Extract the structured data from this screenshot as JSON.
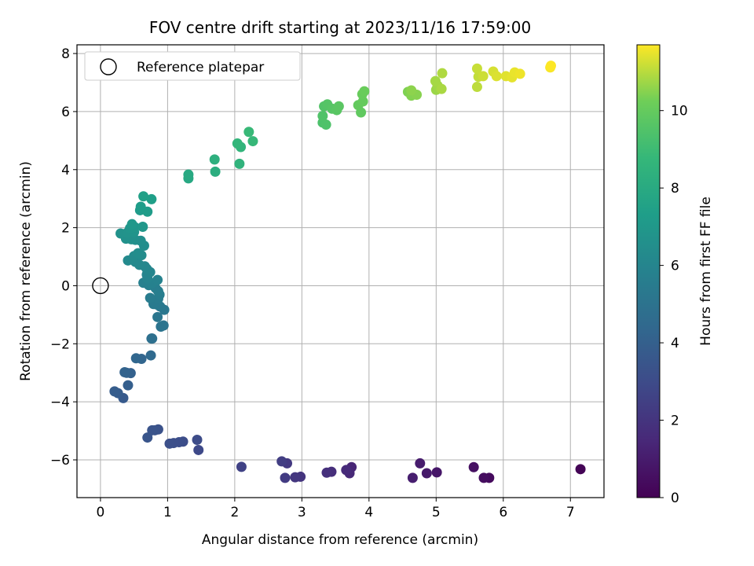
{
  "chart_data": {
    "type": "scatter",
    "title": "FOV centre drift starting at 2023/11/16 17:59:00",
    "xlabel": "Angular distance from reference (arcmin)",
    "ylabel": "Rotation from reference (arcmin)",
    "xlim": [
      -0.35,
      7.5
    ],
    "ylim": [
      -7.3,
      8.3
    ],
    "xticks": [
      0,
      1,
      2,
      3,
      4,
      5,
      6,
      7
    ],
    "yticks": [
      -6,
      -4,
      -2,
      0,
      2,
      4,
      6,
      8
    ],
    "grid": true,
    "legend": {
      "placement": "top-left",
      "entries": [
        "Reference platepar"
      ]
    },
    "reference_point": {
      "x": 0,
      "y": 0
    },
    "colorbar": {
      "label": "Hours from first FF file",
      "colormap": "viridis",
      "range": [
        0,
        11.7
      ],
      "ticks": [
        0,
        2,
        4,
        6,
        8,
        10
      ]
    },
    "series": [
      {
        "points": [
          [
            7.15,
            -6.32,
            0.1
          ],
          [
            5.79,
            -6.62,
            0.35
          ],
          [
            5.71,
            -6.62,
            0.45
          ],
          [
            5.56,
            -6.25,
            0.55
          ],
          [
            5.01,
            -6.43,
            0.8
          ],
          [
            4.86,
            -6.46,
            0.9
          ],
          [
            4.76,
            -6.12,
            1.0
          ],
          [
            4.65,
            -6.62,
            1.1
          ],
          [
            3.74,
            -6.25,
            1.4
          ],
          [
            3.71,
            -6.46,
            1.5
          ],
          [
            3.66,
            -6.35,
            1.6
          ],
          [
            3.44,
            -6.41,
            1.7
          ],
          [
            3.37,
            -6.44,
            1.8
          ],
          [
            2.98,
            -6.58,
            2.0
          ],
          [
            2.9,
            -6.6,
            2.1
          ],
          [
            2.78,
            -6.12,
            2.2
          ],
          [
            2.75,
            -6.62,
            2.3
          ],
          [
            2.7,
            -6.05,
            2.4
          ],
          [
            2.1,
            -6.24,
            2.6
          ],
          [
            1.46,
            -5.66,
            2.9
          ],
          [
            1.44,
            -5.31,
            3.0
          ],
          [
            1.23,
            -5.37,
            3.05
          ],
          [
            1.17,
            -5.39,
            3.1
          ],
          [
            1.09,
            -5.42,
            3.15
          ],
          [
            1.03,
            -5.44,
            3.2
          ],
          [
            0.86,
            -4.95,
            3.3
          ],
          [
            0.81,
            -4.98,
            3.35
          ],
          [
            0.77,
            -4.98,
            3.4
          ],
          [
            0.7,
            -5.23,
            3.45
          ],
          [
            0.34,
            -3.87,
            3.7
          ],
          [
            0.26,
            -3.7,
            3.8
          ],
          [
            0.21,
            -3.64,
            3.85
          ],
          [
            0.41,
            -3.43,
            3.95
          ],
          [
            0.45,
            -3.01,
            4.05
          ],
          [
            0.39,
            -3.0,
            4.1
          ],
          [
            0.36,
            -2.98,
            4.15
          ],
          [
            0.61,
            -2.52,
            4.3
          ],
          [
            0.53,
            -2.5,
            4.35
          ],
          [
            0.75,
            -2.4,
            4.5
          ],
          [
            0.76,
            -1.82,
            4.8
          ],
          [
            0.77,
            -1.82,
            4.85
          ],
          [
            0.9,
            -1.41,
            5.0
          ],
          [
            0.94,
            -1.37,
            5.05
          ],
          [
            0.85,
            -1.08,
            5.15
          ],
          [
            0.95,
            -0.83,
            5.25
          ],
          [
            0.89,
            -0.72,
            5.3
          ],
          [
            0.84,
            -0.65,
            5.35
          ],
          [
            0.79,
            -0.63,
            5.4
          ],
          [
            0.86,
            -0.45,
            5.45
          ],
          [
            0.74,
            -0.42,
            5.5
          ],
          [
            0.88,
            -0.31,
            5.55
          ],
          [
            0.86,
            -0.19,
            5.6
          ],
          [
            0.82,
            -0.08,
            5.65
          ],
          [
            0.72,
            0.02,
            5.7
          ],
          [
            0.64,
            0.1,
            5.75
          ],
          [
            0.76,
            0.08,
            5.8
          ],
          [
            0.85,
            0.2,
            5.85
          ],
          [
            0.7,
            0.25,
            5.9
          ],
          [
            0.69,
            0.38,
            5.95
          ],
          [
            0.74,
            0.47,
            6.0
          ],
          [
            0.69,
            0.58,
            6.05
          ],
          [
            0.66,
            0.67,
            6.1
          ],
          [
            0.58,
            0.72,
            6.15
          ],
          [
            0.52,
            0.82,
            6.2
          ],
          [
            0.41,
            0.87,
            6.25
          ],
          [
            0.5,
            1.02,
            6.3
          ],
          [
            0.61,
            1.05,
            6.35
          ],
          [
            0.56,
            1.12,
            6.4
          ],
          [
            0.65,
            1.38,
            6.45
          ],
          [
            0.6,
            1.55,
            6.5
          ],
          [
            0.52,
            1.58,
            6.55
          ],
          [
            0.46,
            1.6,
            6.6
          ],
          [
            0.38,
            1.62,
            6.65
          ],
          [
            0.3,
            1.8,
            6.7
          ],
          [
            0.4,
            1.83,
            6.75
          ],
          [
            0.5,
            1.85,
            6.8
          ],
          [
            0.44,
            1.98,
            6.85
          ],
          [
            0.51,
            2.02,
            6.9
          ],
          [
            0.63,
            2.03,
            6.95
          ],
          [
            0.47,
            2.12,
            7.0
          ],
          [
            0.59,
            2.6,
            7.15
          ],
          [
            0.7,
            2.55,
            7.2
          ],
          [
            0.6,
            2.72,
            7.25
          ],
          [
            0.76,
            2.98,
            7.4
          ],
          [
            0.64,
            3.08,
            7.45
          ],
          [
            1.31,
            3.7,
            7.9
          ],
          [
            1.31,
            3.83,
            7.95
          ],
          [
            1.71,
            3.93,
            8.2
          ],
          [
            1.7,
            4.35,
            8.3
          ],
          [
            2.07,
            4.2,
            8.5
          ],
          [
            2.09,
            4.78,
            8.6
          ],
          [
            2.04,
            4.9,
            8.65
          ],
          [
            2.27,
            4.98,
            8.8
          ],
          [
            2.21,
            5.3,
            8.85
          ],
          [
            3.31,
            5.62,
            9.4
          ],
          [
            3.36,
            5.55,
            9.45
          ],
          [
            3.31,
            5.85,
            9.5
          ],
          [
            3.33,
            6.18,
            9.55
          ],
          [
            3.38,
            6.25,
            9.6
          ],
          [
            3.45,
            6.1,
            9.65
          ],
          [
            3.52,
            6.05,
            9.7
          ],
          [
            3.55,
            6.18,
            9.75
          ],
          [
            3.88,
            5.97,
            9.9
          ],
          [
            3.84,
            6.22,
            9.95
          ],
          [
            3.91,
            6.35,
            10.0
          ],
          [
            3.9,
            6.6,
            10.05
          ],
          [
            3.93,
            6.7,
            10.1
          ],
          [
            4.58,
            6.68,
            10.4
          ],
          [
            4.63,
            6.55,
            10.45
          ],
          [
            4.71,
            6.58,
            10.5
          ],
          [
            4.63,
            6.73,
            10.55
          ],
          [
            5.0,
            6.75,
            10.7
          ],
          [
            5.02,
            6.9,
            10.75
          ],
          [
            4.99,
            7.05,
            10.8
          ],
          [
            5.08,
            6.78,
            10.85
          ],
          [
            5.09,
            7.32,
            10.9
          ],
          [
            5.61,
            6.85,
            11.05
          ],
          [
            5.63,
            7.2,
            11.1
          ],
          [
            5.61,
            7.48,
            11.15
          ],
          [
            5.7,
            7.22,
            11.2
          ],
          [
            5.85,
            7.38,
            11.3
          ],
          [
            5.9,
            7.22,
            11.35
          ],
          [
            6.04,
            7.22,
            11.4
          ],
          [
            6.13,
            7.18,
            11.45
          ],
          [
            6.17,
            7.35,
            11.5
          ],
          [
            6.25,
            7.3,
            11.55
          ],
          [
            6.7,
            7.52,
            11.65
          ],
          [
            6.71,
            7.58,
            11.7
          ]
        ]
      }
    ]
  }
}
